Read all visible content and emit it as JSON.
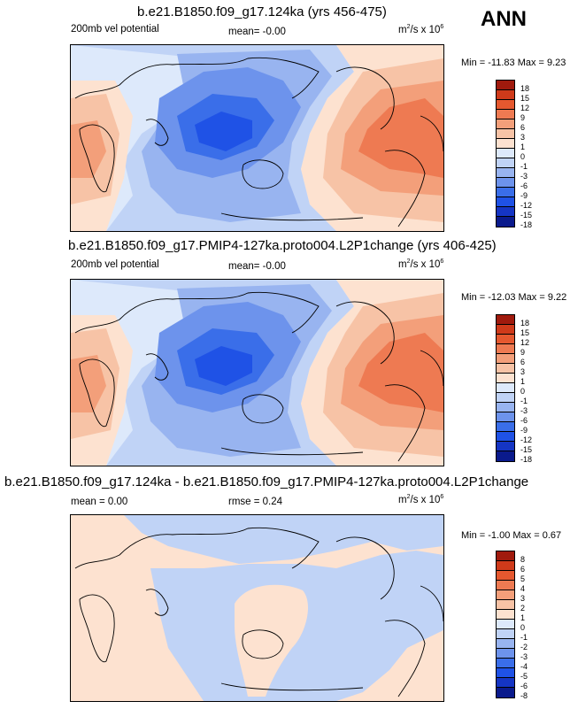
{
  "season": "ANN",
  "colors": {
    "neg18": "#0a1a8c",
    "neg15": "#1535c4",
    "neg12": "#1f52e6",
    "neg9": "#3a6ee9",
    "neg6": "#6d93ec",
    "neg3": "#98b4f0",
    "neg1": "#c0d3f6",
    "zero": "#dde9fb",
    "pos1": "#fde2d0",
    "pos3": "#f7c3a6",
    "pos6": "#f39f7a",
    "pos9": "#ee7a52",
    "pos12": "#e5582f",
    "pos15": "#cf3a1a",
    "pos18": "#a01a0d"
  },
  "panels": [
    {
      "title": "b.e21.B1850.f09_g17.124ka (yrs 456-475)",
      "left_label": "200mb vel potential",
      "center_label": "mean=  -0.00",
      "units": "m",
      "units_sup1": "2",
      "units_mid": "/s x 10",
      "units_sup2": "6",
      "min_label": "Min = -11.83 Max =   9.23",
      "levels": [
        "18",
        "15",
        "12",
        "9",
        "6",
        "3",
        "1",
        "0",
        "-1",
        "-3",
        "-6",
        "-9",
        "-12",
        "-15",
        "-18"
      ]
    },
    {
      "title": "b.e21.B1850.f09_g17.PMIP4-127ka.proto004.L2P1change (yrs 406-425)",
      "left_label": "200mb vel potential",
      "center_label": "mean=  -0.00",
      "units": "m",
      "units_sup1": "2",
      "units_mid": "/s x 10",
      "units_sup2": "6",
      "min_label": "Min = -12.03 Max =   9.22",
      "levels": [
        "18",
        "15",
        "12",
        "9",
        "6",
        "3",
        "1",
        "0",
        "-1",
        "-3",
        "-6",
        "-9",
        "-12",
        "-15",
        "-18"
      ]
    },
    {
      "title": "b.e21.B1850.f09_g17.124ka - b.e21.B1850.f09_g17.PMIP4-127ka.proto004.L2P1change",
      "left_label": "mean =  0.00",
      "center_label": "rmse =  0.24",
      "units": "m",
      "units_sup1": "2",
      "units_mid": "/s x 10",
      "units_sup2": "6",
      "min_label": "Min = -1.00 Max =   0.67",
      "levels": [
        "8",
        "6",
        "5",
        "4",
        "3",
        "2",
        "1",
        "0",
        "-1",
        "-2",
        "-3",
        "-4",
        "-5",
        "-6",
        "-8"
      ]
    }
  ]
}
